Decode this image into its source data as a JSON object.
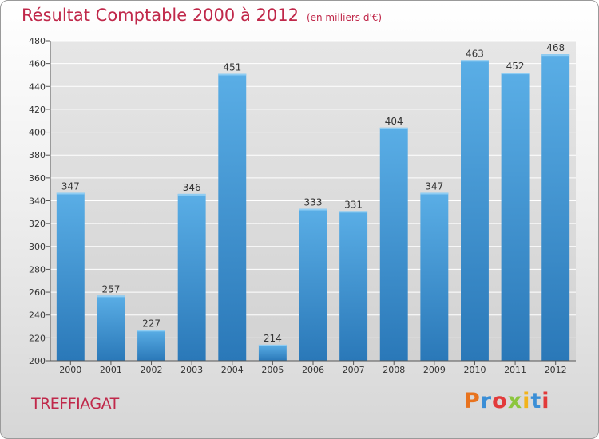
{
  "header": {
    "title": "Résultat Comptable 2000 à 2012",
    "subtitle": "(en milliers d'€)"
  },
  "footer": {
    "commune": "TREFFIAGAT",
    "brand": "Proxiti",
    "brand_colors": [
      "#e8731e",
      "#3a8ed6",
      "#e23a3a",
      "#8cc63e",
      "#f2b31b",
      "#3a8ed6",
      "#e23a3a"
    ]
  },
  "colors": {
    "title": "#c0284a",
    "bar_light": "#5aaee6",
    "bar_dark": "#2a78b8",
    "grid": "#ffffff",
    "plot_bg": "#dcdcdc"
  },
  "chart_data": {
    "type": "bar",
    "title": "Résultat Comptable 2000 à 2012",
    "categories": [
      "2000",
      "2001",
      "2002",
      "2003",
      "2004",
      "2005",
      "2006",
      "2007",
      "2008",
      "2009",
      "2010",
      "2011",
      "2012"
    ],
    "values": [
      347,
      257,
      227,
      346,
      451,
      214,
      333,
      331,
      404,
      347,
      463,
      452,
      468
    ],
    "ylim": [
      200,
      480
    ],
    "yticks": [
      200,
      220,
      240,
      260,
      280,
      300,
      320,
      340,
      360,
      380,
      400,
      420,
      440,
      460,
      480
    ],
    "grid": true,
    "xlabel": "",
    "ylabel": ""
  }
}
